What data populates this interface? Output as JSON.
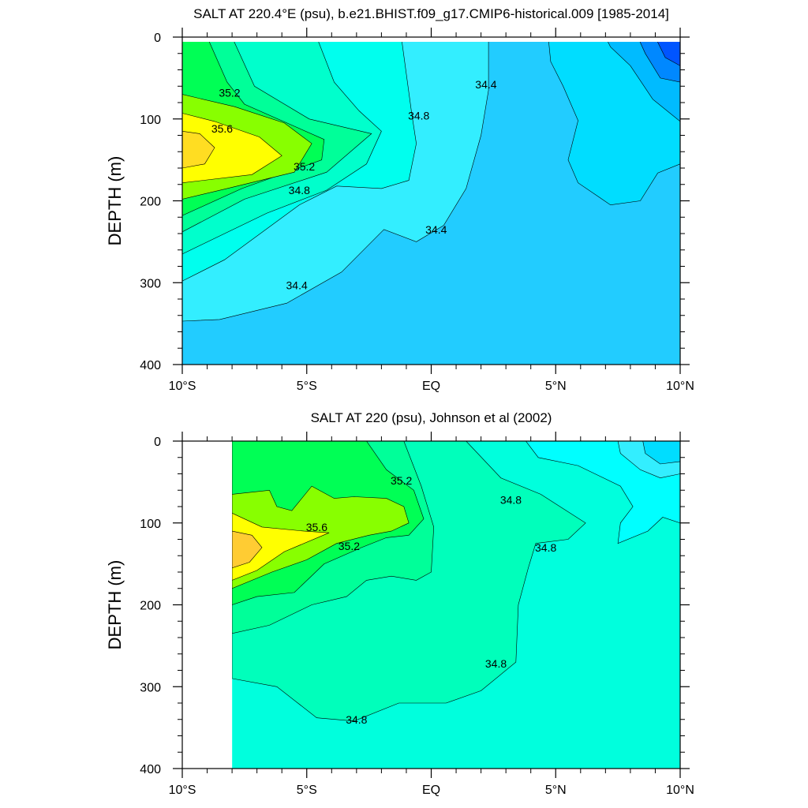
{
  "chart_data": [
    {
      "type": "heatmap",
      "subtype": "filled-contour",
      "title": "SALT AT 220.4°E (psu), b.e21.BHIST.f09_g17.CMIP6-historical.009 [1985-2014]",
      "ylabel": "DEPTH (m)",
      "xlabel": "",
      "x_ticks": [
        {
          "lat": -10,
          "label": "10°S"
        },
        {
          "lat": -5,
          "label": "5°S"
        },
        {
          "lat": 0,
          "label": "EQ"
        },
        {
          "lat": 5,
          "label": "5°N"
        },
        {
          "lat": 10,
          "label": "10°N"
        }
      ],
      "y_ticks": [
        0,
        100,
        200,
        300,
        400
      ],
      "xlim": [
        -10,
        10
      ],
      "ylim": [
        400,
        0
      ],
      "y_reversed": true,
      "data_start_lat": -10,
      "background_color": "#22ccff",
      "contour_labels": [
        {
          "text": "35.2",
          "lat": -8.1,
          "depth": 68
        },
        {
          "text": "35.6",
          "lat": -8.4,
          "depth": 112
        },
        {
          "text": "35.2",
          "lat": -5.1,
          "depth": 158
        },
        {
          "text": "34.8",
          "lat": -5.3,
          "depth": 187
        },
        {
          "text": "34.8",
          "lat": -0.5,
          "depth": 96
        },
        {
          "text": "34.4",
          "lat": 2.2,
          "depth": 58
        },
        {
          "text": "34.4",
          "lat": 0.2,
          "depth": 235
        },
        {
          "text": "34.4",
          "lat": -5.4,
          "depth": 303
        }
      ],
      "regions": [
        {
          "level": 34.2,
          "color": "#22ccff",
          "points": [
            [
              -10,
              0
            ],
            [
              10,
              0
            ],
            [
              10,
              400
            ],
            [
              -10,
              400
            ]
          ]
        },
        {
          "level": 34.0,
          "color": "#00ddff",
          "points": [
            [
              3.5,
              0
            ],
            [
              10,
              0
            ],
            [
              10,
              155
            ],
            [
              9.1,
              166
            ],
            [
              8.4,
              200
            ],
            [
              7.2,
              205
            ],
            [
              5.9,
              178
            ],
            [
              5.5,
              150
            ],
            [
              5.9,
              102
            ],
            [
              5.3,
              60
            ],
            [
              4.8,
              30
            ],
            [
              4.7,
              0
            ]
          ]
        },
        {
          "level": 33.9,
          "color": "#00bbff",
          "points": [
            [
              7.0,
              0
            ],
            [
              10,
              0
            ],
            [
              10,
              103
            ],
            [
              8.9,
              76
            ],
            [
              8.0,
              35
            ],
            [
              7.2,
              12
            ]
          ]
        },
        {
          "level": 33.8,
          "color": "#0088ff",
          "points": [
            [
              8.3,
              0
            ],
            [
              10,
              0
            ],
            [
              10,
              55
            ],
            [
              9.2,
              50
            ],
            [
              8.6,
              20
            ]
          ]
        },
        {
          "level": 33.6,
          "color": "#0055ff",
          "points": [
            [
              9.0,
              0
            ],
            [
              10,
              0
            ],
            [
              10,
              35
            ],
            [
              9.4,
              25
            ]
          ]
        },
        {
          "level": 34.4,
          "color": "#33eeff",
          "points": [
            [
              -10,
              0
            ],
            [
              2.3,
              0
            ],
            [
              2.3,
              65
            ],
            [
              2.0,
              120
            ],
            [
              1.4,
              185
            ],
            [
              0.5,
              230
            ],
            [
              -0.6,
              250
            ],
            [
              -1.9,
              235
            ],
            [
              -3.6,
              287
            ],
            [
              -5.8,
              325
            ],
            [
              -8.5,
              345
            ],
            [
              -10,
              347
            ]
          ]
        },
        {
          "level": 34.6,
          "color": "#00ffee",
          "points": [
            [
              -10,
              0
            ],
            [
              -1.2,
              0
            ],
            [
              -0.8,
              90
            ],
            [
              -0.6,
              130
            ],
            [
              -0.9,
              175
            ],
            [
              -2.0,
              185
            ],
            [
              -3.8,
              182
            ],
            [
              -5.3,
              205
            ],
            [
              -8.3,
              272
            ],
            [
              -10,
              298
            ]
          ]
        },
        {
          "level": 34.8,
          "color": "#00ffcc",
          "points": [
            [
              -10,
              0
            ],
            [
              -4.6,
              0
            ],
            [
              -3.9,
              55
            ],
            [
              -2.9,
              90
            ],
            [
              -2.0,
              115
            ],
            [
              -2.6,
              155
            ],
            [
              -4.2,
              187
            ],
            [
              -6.6,
              215
            ],
            [
              -10,
              265
            ]
          ]
        },
        {
          "level": 35.0,
          "color": "#00ff99",
          "points": [
            [
              -10,
              0
            ],
            [
              -8.0,
              0
            ],
            [
              -7.1,
              60
            ],
            [
              -4.9,
              100
            ],
            [
              -2.4,
              118
            ],
            [
              -4.2,
              165
            ],
            [
              -7.5,
              198
            ],
            [
              -10,
              238
            ]
          ]
        },
        {
          "level": 35.2,
          "color": "#00ff55",
          "points": [
            [
              -10,
              0
            ],
            [
              -9.0,
              0
            ],
            [
              -8.2,
              55
            ],
            [
              -7.5,
              82
            ],
            [
              -4.3,
              125
            ],
            [
              -4.4,
              150
            ],
            [
              -7.6,
              185
            ],
            [
              -10,
              218
            ]
          ]
        },
        {
          "level": 35.4,
          "color": "#88ff00",
          "points": [
            [
              -10,
              70
            ],
            [
              -7.9,
              85
            ],
            [
              -5.9,
              105
            ],
            [
              -4.8,
              130
            ],
            [
              -5.5,
              165
            ],
            [
              -8.2,
              185
            ],
            [
              -10,
              198
            ]
          ]
        },
        {
          "level": 35.6,
          "color": "#ffff00",
          "points": [
            [
              -10,
              93
            ],
            [
              -8.7,
              103
            ],
            [
              -6.9,
              122
            ],
            [
              -6.0,
              145
            ],
            [
              -7.2,
              168
            ],
            [
              -10,
              178
            ]
          ]
        },
        {
          "level": 35.8,
          "color": "#ffdd22",
          "points": [
            [
              -10,
              115
            ],
            [
              -9.3,
              118
            ],
            [
              -8.7,
              135
            ],
            [
              -9.1,
              155
            ],
            [
              -10,
              160
            ]
          ]
        }
      ]
    },
    {
      "type": "heatmap",
      "subtype": "filled-contour",
      "title": "SALT AT 220 (psu), Johnson et al (2002)",
      "ylabel": "DEPTH (m)",
      "xlabel": "",
      "x_ticks": [
        {
          "lat": -10,
          "label": "10°S"
        },
        {
          "lat": -5,
          "label": "5°S"
        },
        {
          "lat": 0,
          "label": "EQ"
        },
        {
          "lat": 5,
          "label": "5°N"
        },
        {
          "lat": 10,
          "label": "10°N"
        }
      ],
      "y_ticks": [
        0,
        100,
        200,
        300,
        400
      ],
      "xlim": [
        -10,
        10
      ],
      "ylim": [
        400,
        0
      ],
      "y_reversed": true,
      "data_start_lat": -8,
      "background_color": "#00ffdd",
      "contour_labels": [
        {
          "text": "35.2",
          "lat": -1.2,
          "depth": 48
        },
        {
          "text": "35.6",
          "lat": -4.6,
          "depth": 105
        },
        {
          "text": "35.2",
          "lat": -3.3,
          "depth": 128
        },
        {
          "text": "34.8",
          "lat": 3.2,
          "depth": 72
        },
        {
          "text": "34.8",
          "lat": 4.6,
          "depth": 130
        },
        {
          "text": "34.8",
          "lat": 2.6,
          "depth": 272
        },
        {
          "text": "34.8",
          "lat": -3.0,
          "depth": 340
        }
      ],
      "regions": [
        {
          "level": 34.7,
          "color": "#00ffdd",
          "points": [
            [
              -8,
              0
            ],
            [
              10,
              0
            ],
            [
              10,
              400
            ],
            [
              -8,
              400
            ]
          ]
        },
        {
          "level": 34.9,
          "color": "#00ffbb",
          "points": [
            [
              -8,
              0
            ],
            [
              1.4,
              0
            ],
            [
              2.8,
              45
            ],
            [
              4.4,
              65
            ],
            [
              6.2,
              100
            ],
            [
              5.5,
              120
            ],
            [
              4.2,
              125
            ],
            [
              3.9,
              155
            ],
            [
              3.5,
              200
            ],
            [
              3.4,
              270
            ],
            [
              2.0,
              305
            ],
            [
              0.6,
              320
            ],
            [
              -1.3,
              320
            ],
            [
              -3.1,
              342
            ],
            [
              -4.6,
              338
            ],
            [
              -6.2,
              300
            ],
            [
              -8,
              290
            ]
          ]
        },
        {
          "level": 34.6,
          "color": "#00ffff",
          "points": [
            [
              3.8,
              0
            ],
            [
              10,
              0
            ],
            [
              10,
              100
            ],
            [
              9.3,
              93
            ],
            [
              8.7,
              110
            ],
            [
              7.5,
              125
            ],
            [
              7.6,
              100
            ],
            [
              8.1,
              80
            ],
            [
              7.6,
              55
            ],
            [
              5.9,
              30
            ],
            [
              4.3,
              20
            ]
          ]
        },
        {
          "level": 34.5,
          "color": "#33eeff",
          "points": [
            [
              7.5,
              0
            ],
            [
              10,
              0
            ],
            [
              10,
              40
            ],
            [
              9.2,
              45
            ],
            [
              8.4,
              35
            ],
            [
              7.6,
              15
            ]
          ]
        },
        {
          "level": 34.4,
          "color": "#00ddff",
          "points": [
            [
              8.5,
              0
            ],
            [
              10,
              0
            ],
            [
              10,
              25
            ],
            [
              9.2,
              28
            ],
            [
              8.6,
              15
            ]
          ]
        },
        {
          "level": 35.1,
          "color": "#00ff99",
          "points": [
            [
              -8,
              0
            ],
            [
              -1.1,
              0
            ],
            [
              -0.4,
              55
            ],
            [
              0.1,
              105
            ],
            [
              0.0,
              160
            ],
            [
              -0.6,
              170
            ],
            [
              -1.6,
              165
            ],
            [
              -2.6,
              170
            ],
            [
              -3.4,
              190
            ],
            [
              -4.8,
              200
            ],
            [
              -6.5,
              225
            ],
            [
              -8,
              235
            ]
          ]
        },
        {
          "level": 35.3,
          "color": "#00ff55",
          "points": [
            [
              -8,
              0
            ],
            [
              -2.6,
              0
            ],
            [
              -1.8,
              35
            ],
            [
              -0.7,
              60
            ],
            [
              -0.3,
              95
            ],
            [
              -0.9,
              115
            ],
            [
              -1.8,
              118
            ],
            [
              -2.8,
              130
            ],
            [
              -4.3,
              150
            ],
            [
              -5.5,
              185
            ],
            [
              -7.0,
              190
            ],
            [
              -8,
              200
            ]
          ]
        },
        {
          "level": 35.5,
          "color": "#88ff00",
          "points": [
            [
              -8,
              65
            ],
            [
              -6.5,
              60
            ],
            [
              -6.2,
              80
            ],
            [
              -5.6,
              85
            ],
            [
              -4.8,
              55
            ],
            [
              -3.9,
              70
            ],
            [
              -3.1,
              68
            ],
            [
              -1.8,
              70
            ],
            [
              -1.1,
              80
            ],
            [
              -0.9,
              100
            ],
            [
              -1.6,
              110
            ],
            [
              -2.5,
              115
            ],
            [
              -3.8,
              125
            ],
            [
              -5.0,
              145
            ],
            [
              -6.4,
              160
            ],
            [
              -8,
              180
            ]
          ]
        },
        {
          "level": 35.7,
          "color": "#ffff00",
          "points": [
            [
              -8,
              88
            ],
            [
              -6.8,
              105
            ],
            [
              -5.1,
              110
            ],
            [
              -4.1,
              112
            ],
            [
              -5.9,
              135
            ],
            [
              -7.0,
              158
            ],
            [
              -8,
              170
            ]
          ]
        },
        {
          "level": 35.9,
          "color": "#ffcc33",
          "points": [
            [
              -8,
              110
            ],
            [
              -7.2,
              115
            ],
            [
              -6.8,
              130
            ],
            [
              -7.3,
              148
            ],
            [
              -8,
              155
            ]
          ]
        }
      ]
    }
  ]
}
